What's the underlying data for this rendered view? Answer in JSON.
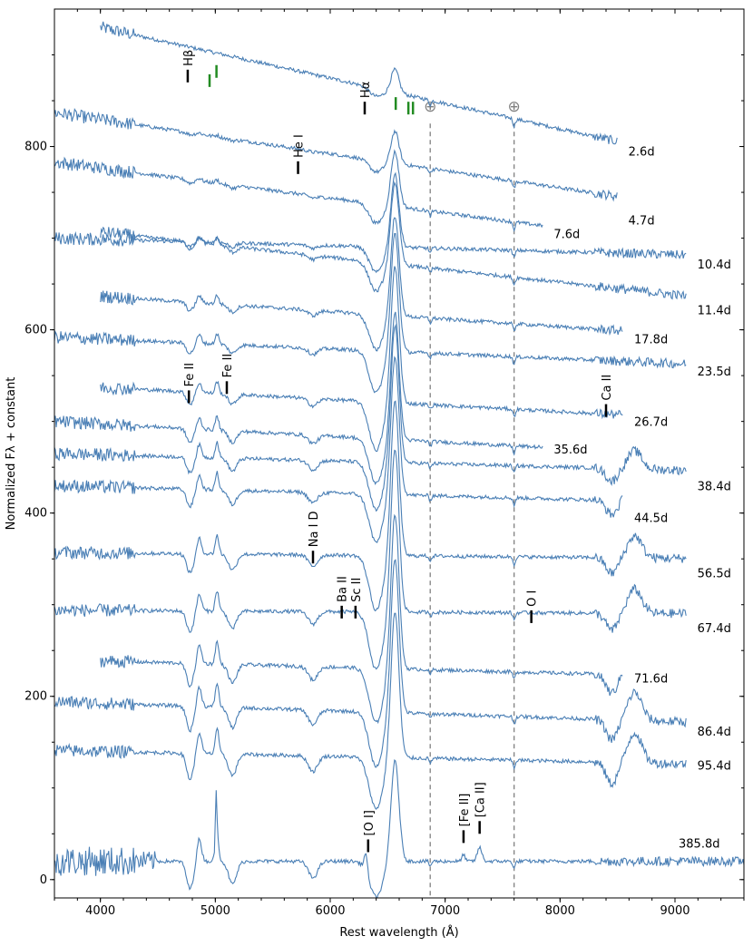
{
  "chart_data": {
    "type": "line",
    "title": "",
    "xlabel": "Rest wavelength (Å)",
    "ylabel": "Normalized Fλ + constant",
    "xlim": [
      3600,
      9600
    ],
    "ylim": [
      -20,
      950
    ],
    "x_ticks": [
      4000,
      5000,
      6000,
      7000,
      8000,
      9000
    ],
    "y_ticks": [
      0,
      200,
      400,
      600,
      800
    ],
    "telluric_lines": [
      {
        "x": 6870,
        "symbol": "⊕"
      },
      {
        "x": 7600,
        "symbol": "⊕"
      }
    ],
    "series": [
      {
        "name": "2.6d",
        "label": "2.6d",
        "x_start": 4000,
        "x_end": 8500,
        "offset": 845,
        "blue_flux": 60,
        "red_flux": -70,
        "halpha": 25,
        "epoch_label_y": 795
      },
      {
        "name": "4.7d",
        "label": "4.7d",
        "x_start": 3600,
        "x_end": 8500,
        "offset": 765,
        "blue_flux": 45,
        "red_flux": -40,
        "halpha": 35,
        "epoch_label_y": 720
      },
      {
        "name": "7.6d",
        "label": "7.6d",
        "x_start": 3600,
        "x_end": 7850,
        "offset": 735,
        "blue_flux": 30,
        "red_flux": -50,
        "halpha": 60,
        "epoch_label_y": 705
      },
      {
        "name": "10.4d",
        "label": "10.4d",
        "x_start": 3600,
        "x_end": 9100,
        "offset": 700,
        "blue_flux": 0,
        "red_flux": -20,
        "halpha": 80,
        "epoch_label_y": 672
      },
      {
        "name": "11.4d",
        "label": "11.4d",
        "x_start": 4000,
        "x_end": 9100,
        "offset": 680,
        "blue_flux": 20,
        "red_flux": -50,
        "halpha": 90,
        "epoch_label_y": 622
      },
      {
        "name": "17.8d",
        "label": "17.8d",
        "x_start": 4000,
        "x_end": 8550,
        "offset": 640,
        "blue_flux": 0,
        "red_flux": -50,
        "halpha": 110,
        "epoch_label_y": 590
      },
      {
        "name": "23.5d",
        "label": "23.5d",
        "x_start": 3600,
        "x_end": 9100,
        "offset": 560,
        "blue_flux": 20,
        "red_flux": 0,
        "halpha": 130,
        "epoch_label_y": 555
      },
      {
        "name": "26.7d",
        "label": "26.7d",
        "x_start": 4000,
        "x_end": 8550,
        "offset": 540,
        "blue_flux": 0,
        "red_flux": -40,
        "halpha": 150,
        "epoch_label_y": 500
      },
      {
        "name": "35.6d",
        "label": "35.6d",
        "x_start": 3600,
        "x_end": 7850,
        "offset": 500,
        "blue_flux": 0,
        "red_flux": -40,
        "halpha": 140,
        "epoch_label_y": 470
      },
      {
        "name": "38.4d",
        "label": "38.4d",
        "x_start": 3600,
        "x_end": 9100,
        "offset": 465,
        "blue_flux": 0,
        "red_flux": -20,
        "halpha": 150,
        "epoch_label_y": 430
      },
      {
        "name": "44.5d",
        "label": "44.5d",
        "x_start": 3600,
        "x_end": 8550,
        "offset": 430,
        "blue_flux": 0,
        "red_flux": -20,
        "halpha": 150,
        "epoch_label_y": 395
      },
      {
        "name": "56.5d",
        "label": "56.5d",
        "x_start": 3600,
        "x_end": 9100,
        "offset": 325,
        "blue_flux": 20,
        "red_flux": 25,
        "halpha": 170,
        "epoch_label_y": 335
      },
      {
        "name": "67.4d",
        "label": "67.4d",
        "x_start": 3600,
        "x_end": 9100,
        "offset": 270,
        "blue_flux": 15,
        "red_flux": 20,
        "halpha": 180,
        "epoch_label_y": 275
      },
      {
        "name": "71.6d",
        "label": "71.6d",
        "x_start": 4000,
        "x_end": 8550,
        "offset": 240,
        "blue_flux": 0,
        "red_flux": -20,
        "halpha": 170,
        "epoch_label_y": 220
      },
      {
        "name": "86.4d",
        "label": "86.4d",
        "x_start": 3600,
        "x_end": 9100,
        "offset": 170,
        "blue_flux": 15,
        "red_flux": 0,
        "halpha": 170,
        "epoch_label_y": 162
      },
      {
        "name": "95.4d",
        "label": "95.4d",
        "x_start": 3600,
        "x_end": 9100,
        "offset": 125,
        "blue_flux": 10,
        "red_flux": 0,
        "halpha": 160,
        "epoch_label_y": 125
      },
      {
        "name": "385.8d",
        "label": "385.8d",
        "x_start": 3600,
        "x_end": 9600,
        "offset": 20,
        "blue_flux": 0,
        "red_flux": 0,
        "halpha": 110,
        "epoch_label_y": 40
      }
    ],
    "line_ids": [
      {
        "label": "Hβ",
        "x": 4760,
        "y": 870
      },
      {
        "label": "Hα",
        "x": 6300,
        "y": 835
      },
      {
        "label": "He I",
        "x": 5720,
        "y": 770
      },
      {
        "label": "Fe II",
        "x": 4770,
        "y": 520
      },
      {
        "label": "Fe II",
        "x": 5100,
        "y": 530
      },
      {
        "label": "Ca II",
        "x": 8400,
        "y": 505
      },
      {
        "label": "Na I D",
        "x": 5850,
        "y": 345
      },
      {
        "label": "Ba II",
        "x": 6100,
        "y": 285
      },
      {
        "label": "Sc II",
        "x": 6220,
        "y": 285
      },
      {
        "label": "O I",
        "x": 7750,
        "y": 280
      },
      {
        "label": "[O I]",
        "x": 6330,
        "y": 30
      },
      {
        "label": "[Fe II]",
        "x": 7160,
        "y": 40
      },
      {
        "label": "[Ca II]",
        "x": 7300,
        "y": 50
      }
    ],
    "green_markers": [
      {
        "x": 4950,
        "y": 865
      },
      {
        "x": 5010,
        "y": 875
      },
      {
        "x": 6570,
        "y": 840
      },
      {
        "x": 6680,
        "y": 835
      },
      {
        "x": 6720,
        "y": 835
      }
    ],
    "colors": {
      "spectrum": "#4a7fb5",
      "markers": "#228b22",
      "telluric": "#808080"
    }
  }
}
